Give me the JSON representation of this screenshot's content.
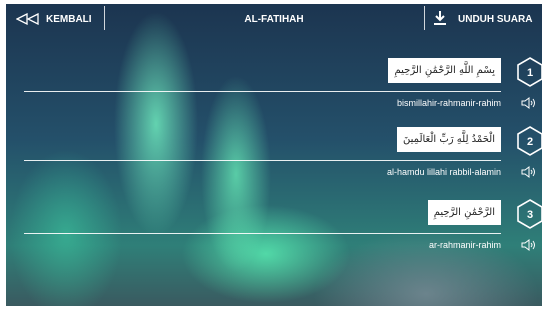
{
  "header": {
    "back": "KEMBALI",
    "title": "AL-FATIHAH",
    "download": "UNDUH SUARA"
  },
  "verses": [
    {
      "number": 1,
      "arabic": "بِسْمِ اللَّهِ الرَّحْمَٰنِ الرَّحِيمِ",
      "latin": "bismillahir-rahmanir-rahim"
    },
    {
      "number": 2,
      "arabic": "الْحَمْدُ لِلَّهِ رَبِّ الْعَالَمِينَ",
      "latin": "al-hamdu lillahi rabbil-alamin"
    },
    {
      "number": 3,
      "arabic": "الرَّحْمَٰنِ الرَّحِيمِ",
      "latin": "ar-rahmanir-rahim"
    }
  ]
}
